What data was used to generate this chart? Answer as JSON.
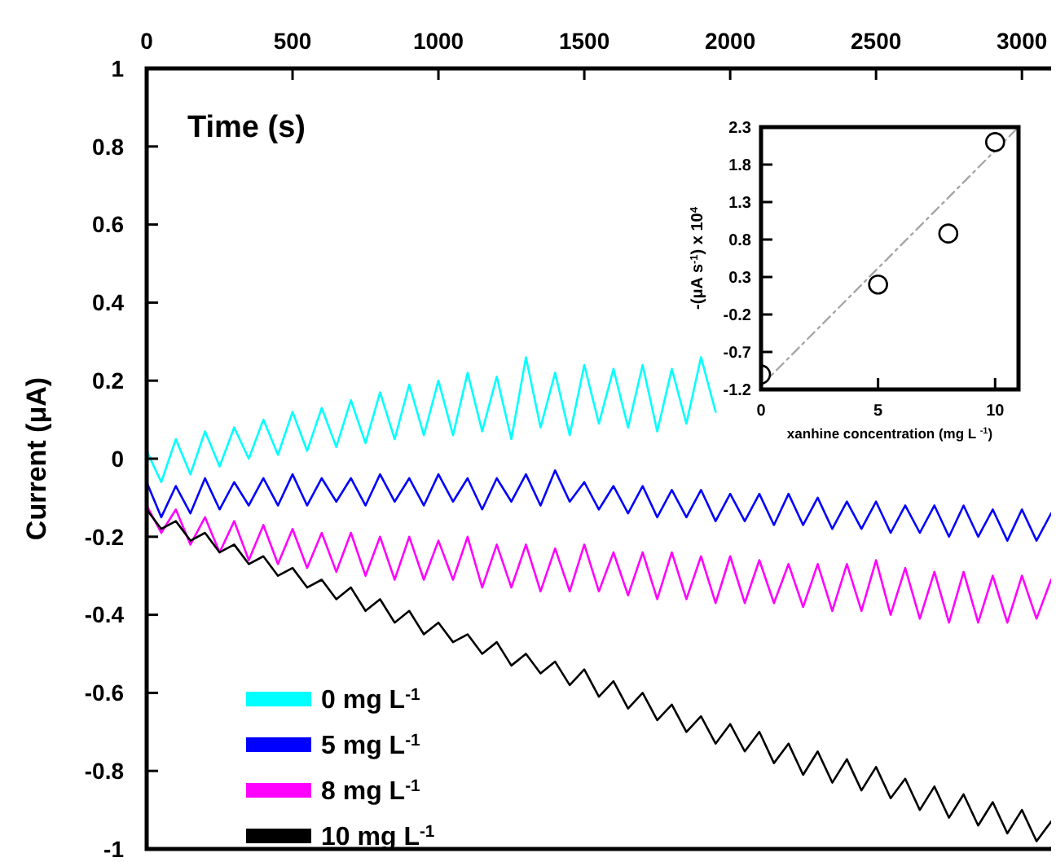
{
  "chart_data": [
    {
      "type": "line",
      "xlabel": "Time (s)",
      "ylabel": "Current (μA)",
      "xlim": [
        0,
        3100
      ],
      "xticks": [
        0,
        500,
        1000,
        1500,
        2000,
        2500,
        3000
      ],
      "ylim": [
        -1,
        1
      ],
      "yticks": [
        -1,
        -0.8,
        -0.6,
        -0.4,
        -0.2,
        0,
        0.2,
        0.4,
        0.6,
        0.8,
        1
      ],
      "legend": "bottom left",
      "marker": "none",
      "line_style": "solid",
      "x": [
        0,
        50,
        100,
        150,
        200,
        250,
        300,
        350,
        400,
        450,
        500,
        550,
        600,
        650,
        700,
        750,
        800,
        850,
        900,
        950,
        1000,
        1050,
        1100,
        1150,
        1200,
        1250,
        1300,
        1350,
        1400,
        1450,
        1500,
        1550,
        1600,
        1650,
        1700,
        1750,
        1800,
        1850,
        1900,
        1950,
        2000,
        2050,
        2100,
        2150,
        2200,
        2250,
        2300,
        2350,
        2400,
        2450,
        2500,
        2550,
        2600,
        2650,
        2700,
        2750,
        2800,
        2850,
        2900,
        2950,
        3000,
        3050,
        3100
      ],
      "series": [
        {
          "name": "0 mg L$^{-1}$",
          "color": "#00ffff",
          "x": [
            0,
            50,
            100,
            150,
            200,
            250,
            300,
            350,
            400,
            450,
            500,
            550,
            600,
            650,
            700,
            750,
            800,
            850,
            900,
            950,
            1000,
            1050,
            1100,
            1150,
            1200,
            1250,
            1300,
            1350,
            1400,
            1450,
            1500,
            1550,
            1600,
            1650,
            1700,
            1750,
            1800,
            1850,
            1900,
            1950
          ],
          "values": [
            0.02,
            -0.06,
            0.05,
            -0.04,
            0.07,
            -0.02,
            0.08,
            0.0,
            0.1,
            0.01,
            0.12,
            0.02,
            0.13,
            0.03,
            0.15,
            0.04,
            0.17,
            0.05,
            0.19,
            0.06,
            0.2,
            0.06,
            0.22,
            0.07,
            0.21,
            0.05,
            0.26,
            0.08,
            0.22,
            0.06,
            0.24,
            0.09,
            0.23,
            0.08,
            0.24,
            0.07,
            0.23,
            0.09,
            0.26,
            0.12
          ]
        },
        {
          "name": "5 mg L$^{-1}$",
          "color": "#0000ff",
          "values": [
            -0.06,
            -0.15,
            -0.07,
            -0.14,
            -0.05,
            -0.13,
            -0.06,
            -0.12,
            -0.05,
            -0.12,
            -0.04,
            -0.12,
            -0.05,
            -0.11,
            -0.05,
            -0.12,
            -0.04,
            -0.11,
            -0.05,
            -0.12,
            -0.04,
            -0.11,
            -0.05,
            -0.13,
            -0.05,
            -0.11,
            -0.04,
            -0.12,
            -0.03,
            -0.11,
            -0.06,
            -0.13,
            -0.07,
            -0.14,
            -0.07,
            -0.15,
            -0.08,
            -0.15,
            -0.08,
            -0.16,
            -0.09,
            -0.16,
            -0.09,
            -0.17,
            -0.09,
            -0.17,
            -0.1,
            -0.18,
            -0.11,
            -0.18,
            -0.11,
            -0.19,
            -0.12,
            -0.19,
            -0.12,
            -0.2,
            -0.12,
            -0.2,
            -0.13,
            -0.21,
            -0.13,
            -0.21,
            -0.14
          ]
        },
        {
          "name": "8 mg L$^{-1}$",
          "color": "#ff00ff",
          "values": [
            -0.12,
            -0.19,
            -0.13,
            -0.22,
            -0.15,
            -0.24,
            -0.16,
            -0.26,
            -0.17,
            -0.27,
            -0.18,
            -0.28,
            -0.19,
            -0.29,
            -0.19,
            -0.3,
            -0.2,
            -0.31,
            -0.2,
            -0.31,
            -0.21,
            -0.31,
            -0.2,
            -0.33,
            -0.22,
            -0.33,
            -0.22,
            -0.34,
            -0.23,
            -0.34,
            -0.22,
            -0.34,
            -0.24,
            -0.35,
            -0.24,
            -0.36,
            -0.24,
            -0.36,
            -0.25,
            -0.37,
            -0.25,
            -0.37,
            -0.26,
            -0.37,
            -0.27,
            -0.38,
            -0.27,
            -0.39,
            -0.27,
            -0.39,
            -0.26,
            -0.4,
            -0.28,
            -0.41,
            -0.29,
            -0.42,
            -0.29,
            -0.42,
            -0.3,
            -0.42,
            -0.3,
            -0.41,
            -0.31
          ]
        },
        {
          "name": "10 mg L$^{-1}$",
          "color": "#000000",
          "values": [
            -0.13,
            -0.18,
            -0.16,
            -0.21,
            -0.19,
            -0.24,
            -0.22,
            -0.27,
            -0.25,
            -0.3,
            -0.28,
            -0.33,
            -0.31,
            -0.36,
            -0.33,
            -0.39,
            -0.36,
            -0.42,
            -0.39,
            -0.45,
            -0.42,
            -0.47,
            -0.45,
            -0.5,
            -0.47,
            -0.53,
            -0.5,
            -0.55,
            -0.52,
            -0.58,
            -0.54,
            -0.61,
            -0.57,
            -0.64,
            -0.6,
            -0.67,
            -0.63,
            -0.7,
            -0.66,
            -0.73,
            -0.68,
            -0.75,
            -0.7,
            -0.78,
            -0.73,
            -0.81,
            -0.75,
            -0.83,
            -0.77,
            -0.85,
            -0.79,
            -0.87,
            -0.82,
            -0.9,
            -0.84,
            -0.92,
            -0.86,
            -0.94,
            -0.88,
            -0.96,
            -0.9,
            -0.98,
            -0.93
          ]
        }
      ]
    },
    {
      "type": "scatter",
      "xlabel": "xanhine concentration (mg L $^{-1}$)",
      "ylabel": "-(μA s$^{-1}$) x 10$^{4}$",
      "xlim": [
        0,
        11
      ],
      "xticks": [
        0,
        5,
        10
      ],
      "ylim": [
        -1.2,
        2.3
      ],
      "yticks": [
        -1.2,
        -0.7,
        -0.2,
        0.3,
        0.8,
        1.3,
        1.8,
        2.3
      ],
      "marker": "circle",
      "series": [
        {
          "color": "#000000",
          "x": [
            0,
            5,
            8,
            10
          ],
          "values": [
            -1.0,
            0.2,
            0.88,
            2.1
          ]
        },
        {
          "type": "line",
          "color": "#a6a6a6",
          "line_style": "dashdot",
          "marker": "none",
          "x": [
            0,
            11
          ],
          "values": [
            -1.15,
            2.3
          ]
        }
      ]
    }
  ]
}
